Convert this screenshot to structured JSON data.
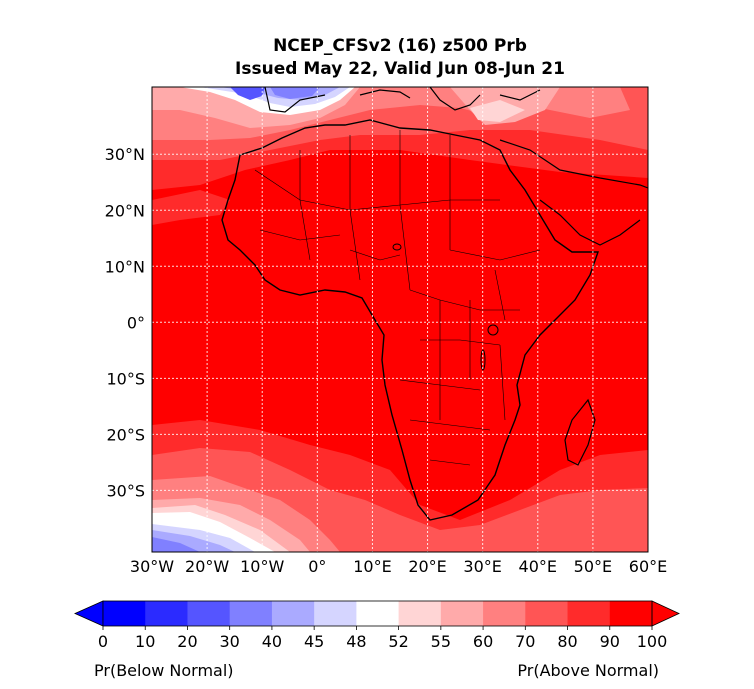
{
  "title_line1": "NCEP_CFSv2 (16) z500 Prb",
  "title_line2": "Issued May 22, Valid Jun 08-Jun 21",
  "lat_labels": [
    "30°N",
    "20°N",
    "10°N",
    "0°",
    "10°S",
    "20°S",
    "30°S"
  ],
  "lat_values": [
    30,
    20,
    10,
    0,
    -10,
    -20,
    -30
  ],
  "lon_labels": [
    "30°W",
    "20°W",
    "10°W",
    "0°",
    "10°E",
    "20°E",
    "30°E",
    "40°E",
    "50°E",
    "60°E"
  ],
  "lon_values": [
    -30,
    -20,
    -10,
    0,
    10,
    20,
    30,
    40,
    50,
    60
  ],
  "extent": {
    "lon_min": -30,
    "lon_max": 60,
    "lat_min": -41,
    "lat_max": 42
  },
  "colorbar": {
    "ticks": [
      "0",
      "10",
      "20",
      "30",
      "40",
      "45",
      "48",
      "52",
      "55",
      "60",
      "70",
      "80",
      "90",
      "100"
    ],
    "colors": [
      "#0000ff",
      "#2b2bff",
      "#5555ff",
      "#8080ff",
      "#aaaaff",
      "#d5d5ff",
      "#ffffff",
      "#ffd5d5",
      "#ffaaaa",
      "#ff8080",
      "#ff5555",
      "#ff2b2b",
      "#ff0000"
    ],
    "under_color": "#0000ff",
    "over_color": "#ff0000",
    "left_label": "Pr(Below Normal)",
    "right_label": "Pr(Above Normal)"
  },
  "field_colors": {
    "ocean_base": "#ff0000",
    "p90": "#ff2b2b",
    "p80": "#ff5555",
    "p70": "#ff8080",
    "p60": "#ffaaaa",
    "p55": "#ffd5d5",
    "neutral": "#ffffff",
    "p45": "#d5d5ff",
    "p40": "#aaaaff",
    "p30": "#8080ff",
    "p20": "#5555ff",
    "p10": "#2b2bff"
  }
}
